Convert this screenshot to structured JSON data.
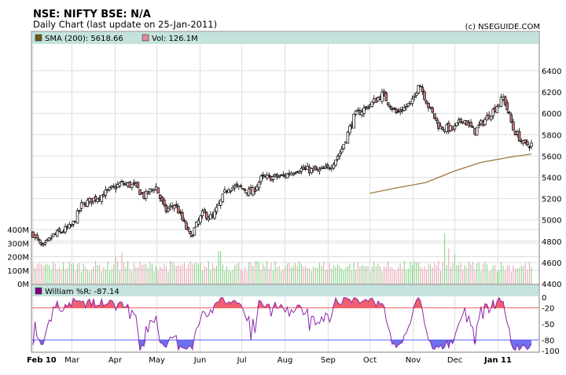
{
  "header": {
    "title": "NSE: NIFTY BSE: N/A",
    "subtitle": "Daily Chart (last update on 25-Jan-2011)",
    "credit": "(c) NSEGUIDE.COM"
  },
  "legend": {
    "sma_label": "SMA (200): 5618.66",
    "vol_label": "Vol: 126.1M",
    "williams_label": "William %R: -87.14"
  },
  "colors": {
    "legend_band": "#c4e3dd",
    "up_candle": "#ffffff",
    "down_candle": "#c87878",
    "sma_line": "#9c7a3c",
    "volume_up": "#7fcf7f",
    "volume_down": "#e6a0b0",
    "williams_line": "#8a2aa8",
    "overbought_fill": "#f06070",
    "oversold_fill": "#7070ee",
    "grid": "#dddddd"
  },
  "chart_data": [
    {
      "type": "candlestick",
      "panel": "price",
      "ylim": [
        4400,
        6600
      ],
      "y_ticks": [
        "6400",
        "6200",
        "6000",
        "5800",
        "5600",
        "5400",
        "5200",
        "5000",
        "4800",
        "4600",
        "4400"
      ],
      "x_tick_labels": [
        "Feb 10",
        "Mar",
        "Apr",
        "May",
        "Jun",
        "Jul",
        "Aug",
        "Sep",
        "Oct",
        "Nov",
        "Dec",
        "Jan 11"
      ],
      "close_anchors": [
        {
          "date": "2010-02-01",
          "close": 4870
        },
        {
          "date": "2010-02-08",
          "close": 4730
        },
        {
          "date": "2010-02-15",
          "close": 4850
        },
        {
          "date": "2010-03-01",
          "close": 4940
        },
        {
          "date": "2010-03-08",
          "close": 5140
        },
        {
          "date": "2010-03-22",
          "close": 5230
        },
        {
          "date": "2010-04-05",
          "close": 5340
        },
        {
          "date": "2010-04-15",
          "close": 5320
        },
        {
          "date": "2010-04-22",
          "close": 5220
        },
        {
          "date": "2010-04-30",
          "close": 5320
        },
        {
          "date": "2010-05-07",
          "close": 5080
        },
        {
          "date": "2010-05-14",
          "close": 5150
        },
        {
          "date": "2010-05-25",
          "close": 4840
        },
        {
          "date": "2010-06-03",
          "close": 5060
        },
        {
          "date": "2010-06-10",
          "close": 5020
        },
        {
          "date": "2010-06-21",
          "close": 5310
        },
        {
          "date": "2010-07-01",
          "close": 5300
        },
        {
          "date": "2010-07-08",
          "close": 5250
        },
        {
          "date": "2010-07-15",
          "close": 5390
        },
        {
          "date": "2010-07-31",
          "close": 5410
        },
        {
          "date": "2010-08-10",
          "close": 5480
        },
        {
          "date": "2010-08-25",
          "close": 5460
        },
        {
          "date": "2010-09-01",
          "close": 5480
        },
        {
          "date": "2010-09-10",
          "close": 5640
        },
        {
          "date": "2010-09-20",
          "close": 5980
        },
        {
          "date": "2010-10-01",
          "close": 6080
        },
        {
          "date": "2010-10-10",
          "close": 6180
        },
        {
          "date": "2010-10-20",
          "close": 6000
        },
        {
          "date": "2010-11-01",
          "close": 6110
        },
        {
          "date": "2010-11-05",
          "close": 6300
        },
        {
          "date": "2010-11-12",
          "close": 6070
        },
        {
          "date": "2010-11-20",
          "close": 5870
        },
        {
          "date": "2010-11-30",
          "close": 5850
        },
        {
          "date": "2010-12-07",
          "close": 5950
        },
        {
          "date": "2010-12-15",
          "close": 5830
        },
        {
          "date": "2010-12-28",
          "close": 6020
        },
        {
          "date": "2011-01-05",
          "close": 6150
        },
        {
          "date": "2011-01-12",
          "close": 5850
        },
        {
          "date": "2011-01-20",
          "close": 5700
        },
        {
          "date": "2011-01-25",
          "close": 5710
        }
      ]
    },
    {
      "type": "line",
      "panel": "price",
      "series": [
        {
          "name": "SMA (200)",
          "points": [
            {
              "date": "2010-10-01",
              "value": 5250
            },
            {
              "date": "2010-10-20",
              "value": 5300
            },
            {
              "date": "2010-11-10",
              "value": 5350
            },
            {
              "date": "2010-12-01",
              "value": 5460
            },
            {
              "date": "2010-12-20",
              "value": 5540
            },
            {
              "date": "2011-01-10",
              "value": 5590
            },
            {
              "date": "2011-01-25",
              "value": 5618.66
            }
          ]
        }
      ]
    },
    {
      "type": "bar",
      "panel": "volume",
      "ylim": [
        0,
        500
      ],
      "y_ticks": [
        "400M",
        "300M",
        "200M",
        "100M",
        "0M"
      ],
      "note_values_in": "M",
      "spikes": [
        {
          "date": "2010-04-01",
          "value": 200
        },
        {
          "date": "2010-04-06",
          "value": 230
        },
        {
          "date": "2010-06-15",
          "value": 240
        },
        {
          "date": "2010-11-24",
          "value": 370
        },
        {
          "date": "2010-11-26",
          "value": 260
        },
        {
          "date": "2010-12-01",
          "value": 220
        }
      ]
    },
    {
      "type": "line",
      "panel": "williams",
      "ylim": [
        -100,
        0
      ],
      "y_ticks": [
        {
          "label": "0",
          "value": 0,
          "color": "#000000"
        },
        {
          "label": "-20",
          "value": -20,
          "color": "#cc0000"
        },
        {
          "label": "-50",
          "value": -50,
          "color": "#000000"
        },
        {
          "label": "-80",
          "value": -80,
          "color": "#0000cc"
        },
        {
          "label": "-100",
          "value": -100,
          "color": "#000000"
        }
      ],
      "series": [
        {
          "name": "William %R",
          "last": -87.14
        }
      ]
    }
  ]
}
